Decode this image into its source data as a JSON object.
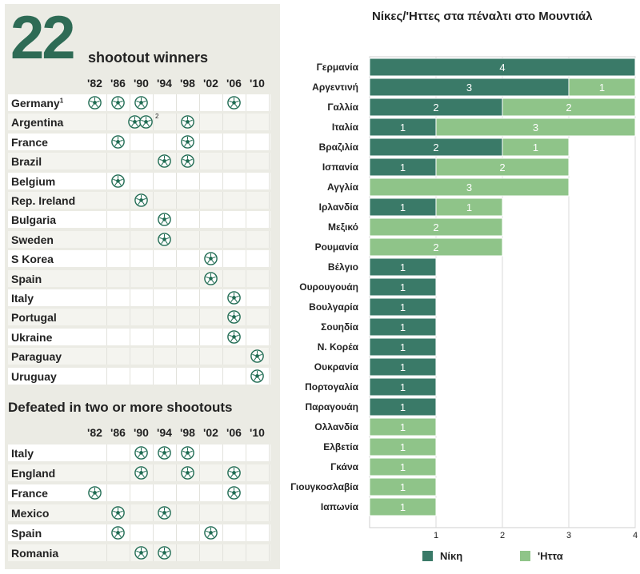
{
  "left_panel": {
    "big_number": "22",
    "subtitle": "shootout winners",
    "years": [
      "'82",
      "'86",
      "'90",
      "'94",
      "'98",
      "'02",
      "'06",
      "'10"
    ],
    "winners": [
      {
        "country": "Germany",
        "sup": "1",
        "balls": [
          0,
          1,
          2,
          6
        ]
      },
      {
        "country": "Argentina",
        "sup": "",
        "balls": [
          4
        ],
        "double": 2,
        "double_sup": "2"
      },
      {
        "country": "France",
        "sup": "",
        "balls": [
          1,
          4
        ]
      },
      {
        "country": "Brazil",
        "sup": "",
        "balls": [
          3,
          4
        ]
      },
      {
        "country": "Belgium",
        "sup": "",
        "balls": [
          1
        ]
      },
      {
        "country": "Rep. Ireland",
        "sup": "",
        "balls": [
          2
        ]
      },
      {
        "country": "Bulgaria",
        "sup": "",
        "balls": [
          3
        ]
      },
      {
        "country": "Sweden",
        "sup": "",
        "balls": [
          3
        ]
      },
      {
        "country": "S Korea",
        "sup": "",
        "balls": [
          5
        ]
      },
      {
        "country": "Spain",
        "sup": "",
        "balls": [
          5
        ]
      },
      {
        "country": "Italy",
        "sup": "",
        "balls": [
          6
        ]
      },
      {
        "country": "Portugal",
        "sup": "",
        "balls": [
          6
        ]
      },
      {
        "country": "Ukraine",
        "sup": "",
        "balls": [
          6
        ]
      },
      {
        "country": "Paraguay",
        "sup": "",
        "balls": [
          7
        ]
      },
      {
        "country": "Uruguay",
        "sup": "",
        "balls": [
          7
        ]
      }
    ],
    "defeated_title": "Defeated in two or more shootouts",
    "defeated": [
      {
        "country": "Italy",
        "balls": [
          2,
          3,
          4
        ]
      },
      {
        "country": "England",
        "balls": [
          2,
          4,
          6
        ]
      },
      {
        "country": "France",
        "balls": [
          0,
          6
        ]
      },
      {
        "country": "Mexico",
        "balls": [
          1,
          3
        ]
      },
      {
        "country": "Spain",
        "balls": [
          1,
          5
        ]
      },
      {
        "country": "Romania",
        "balls": [
          2,
          3
        ]
      }
    ]
  },
  "chart_data": {
    "type": "bar",
    "orientation": "horizontal",
    "stacked": true,
    "title": "Νίκες/'Ηττες στα πέναλτι στο Μουντιάλ",
    "categories": [
      "Γερμανία",
      "Αργεντινή",
      "Γαλλία",
      "Ιταλία",
      "Βραζιλία",
      "Ισπανία",
      "Αγγλία",
      "Ιρλανδία",
      "Μεξικό",
      "Ρουμανία",
      "Βέλγιο",
      "Ουρουγουάη",
      "Βουλγαρία",
      "Σουηδία",
      "Ν. Κορέα",
      "Ουκρανία",
      "Πορτογαλία",
      "Παραγουάη",
      "Ολλανδία",
      "Ελβετία",
      "Γκάνα",
      "Γιουγκοσλαβία",
      "Ιαπωνία"
    ],
    "series": [
      {
        "name": "Νίκη",
        "color": "#3a7a68",
        "values": [
          4,
          3,
          2,
          1,
          2,
          1,
          0,
          1,
          0,
          0,
          1,
          1,
          1,
          1,
          1,
          1,
          1,
          1,
          0,
          0,
          0,
          0,
          0
        ]
      },
      {
        "name": "'Ηττα",
        "color": "#8fc489",
        "values": [
          0,
          1,
          2,
          3,
          1,
          2,
          3,
          1,
          2,
          2,
          0,
          0,
          0,
          0,
          0,
          0,
          0,
          0,
          1,
          1,
          1,
          1,
          1
        ]
      }
    ],
    "xlim": [
      0,
      4
    ],
    "xticks": [
      "1",
      "2",
      "3",
      "4"
    ],
    "legend": [
      "Νίκη",
      "'Ηττα"
    ]
  }
}
